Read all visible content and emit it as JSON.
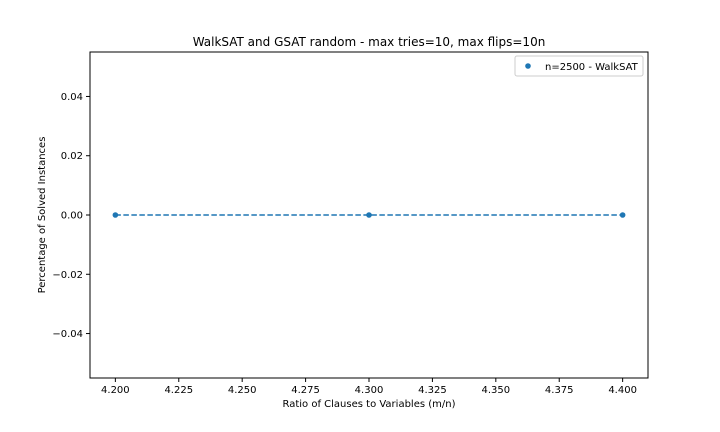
{
  "chart_data": {
    "type": "scatter",
    "title": "WalkSAT and GSAT random - max tries=10, max flips=10n",
    "xlabel": "Ratio of Clauses to Variables (m/n)",
    "ylabel": "Percentage of Solved Instances",
    "xlim": [
      4.19,
      4.41
    ],
    "ylim": [
      -0.055,
      0.055
    ],
    "x_ticks": [
      4.2,
      4.225,
      4.25,
      4.275,
      4.3,
      4.325,
      4.35,
      4.375,
      4.4
    ],
    "x_tick_labels": [
      "4.200",
      "4.225",
      "4.250",
      "4.275",
      "4.300",
      "4.325",
      "4.350",
      "4.375",
      "4.400"
    ],
    "y_ticks": [
      -0.04,
      -0.02,
      0.0,
      0.02,
      0.04
    ],
    "y_tick_labels": [
      "−0.04",
      "−0.02",
      "0.00",
      "0.02",
      "0.04"
    ],
    "legend_position": "top-right",
    "grid": false,
    "series": [
      {
        "name": "n=2500 - WalkSAT",
        "color": "#1f77b4",
        "line_style": "dashed",
        "x": [
          4.2,
          4.3,
          4.4
        ],
        "y": [
          0.0,
          0.0,
          0.0
        ]
      }
    ]
  }
}
